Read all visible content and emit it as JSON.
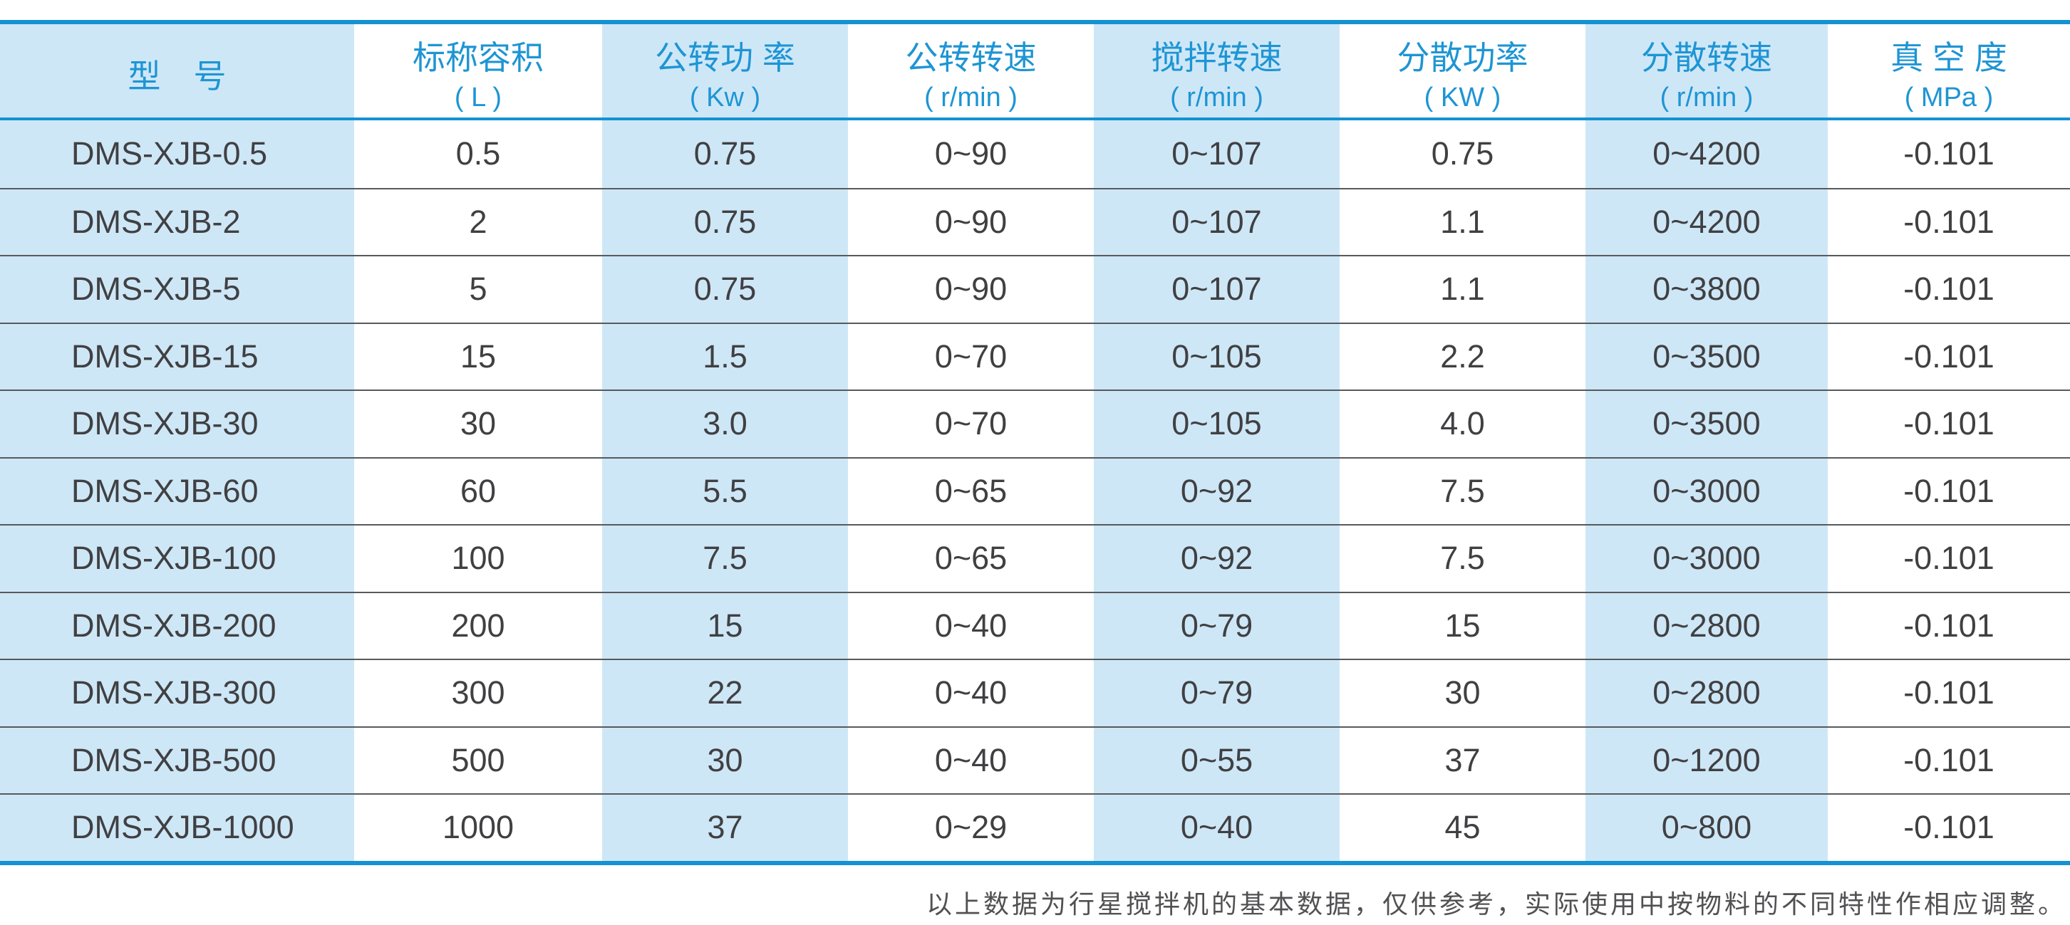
{
  "table": {
    "header": [
      {
        "title": "型　号",
        "unit": ""
      },
      {
        "title": "标称容积",
        "unit": "( L )"
      },
      {
        "title": "公转功 率",
        "unit": "( Kw )"
      },
      {
        "title": "公转转速",
        "unit": "( r/min )"
      },
      {
        "title": "搅拌转速",
        "unit": "( r/min )"
      },
      {
        "title": "分散功率",
        "unit": "( KW )"
      },
      {
        "title": "分散转速",
        "unit": "( r/min )"
      },
      {
        "title": "真 空 度",
        "unit": "( MPa )"
      }
    ],
    "rows": [
      [
        "DMS-XJB-0.5",
        "0.5",
        "0.75",
        "0~90",
        "0~107",
        "0.75",
        "0~4200",
        "-0.101"
      ],
      [
        "DMS-XJB-2",
        "2",
        "0.75",
        "0~90",
        "0~107",
        "1.1",
        "0~4200",
        "-0.101"
      ],
      [
        "DMS-XJB-5",
        "5",
        "0.75",
        "0~90",
        "0~107",
        "1.1",
        "0~3800",
        "-0.101"
      ],
      [
        "DMS-XJB-15",
        "15",
        "1.5",
        "0~70",
        "0~105",
        "2.2",
        "0~3500",
        "-0.101"
      ],
      [
        "DMS-XJB-30",
        "30",
        "3.0",
        "0~70",
        "0~105",
        "4.0",
        "0~3500",
        "-0.101"
      ],
      [
        "DMS-XJB-60",
        "60",
        "5.5",
        "0~65",
        "0~92",
        "7.5",
        "0~3000",
        "-0.101"
      ],
      [
        "DMS-XJB-100",
        "100",
        "7.5",
        "0~65",
        "0~92",
        "7.5",
        "0~3000",
        "-0.101"
      ],
      [
        "DMS-XJB-200",
        "200",
        "15",
        "0~40",
        "0~79",
        "15",
        "0~2800",
        "-0.101"
      ],
      [
        "DMS-XJB-300",
        "300",
        "22",
        "0~40",
        "0~79",
        "30",
        "0~2800",
        "-0.101"
      ],
      [
        "DMS-XJB-500",
        "500",
        "30",
        "0~40",
        "0~55",
        "37",
        "0~1200",
        "-0.101"
      ],
      [
        "DMS-XJB-1000",
        "1000",
        "37",
        "0~29",
        "0~40",
        "45",
        "0~800",
        "-0.101"
      ]
    ]
  },
  "footer": {
    "note": "以上数据为行星搅拌机的基本数据，仅供参考，实际使用中按物料的不同特性作相应调整。"
  },
  "colors": {
    "accent_blue": "#1492d2",
    "stripe_blue": "#cee7f7",
    "header_text": "#1e95d4",
    "body_text": "#404042",
    "separator_gray": "#58595b"
  }
}
